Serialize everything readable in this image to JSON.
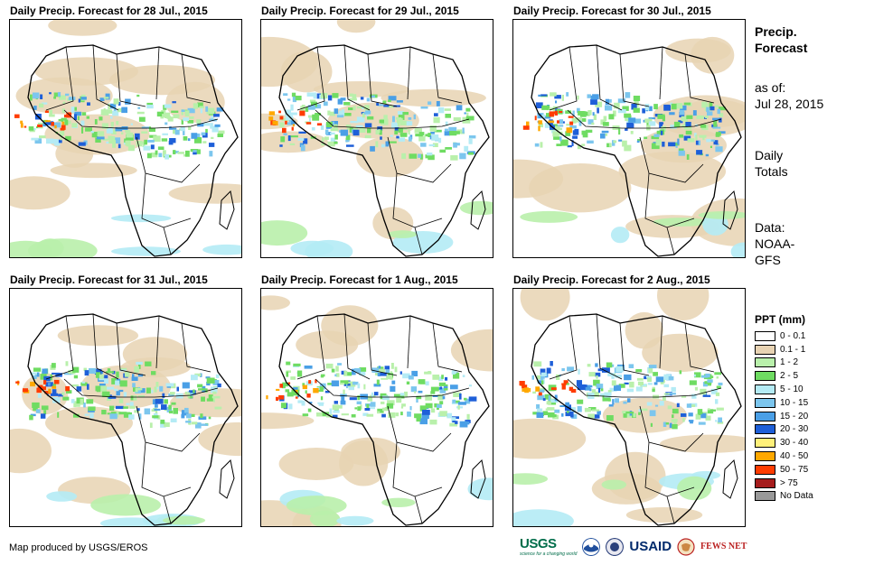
{
  "panels": [
    {
      "title": "Daily Precip. Forecast for 28 Jul., 2015"
    },
    {
      "title": "Daily Precip. Forecast for 29 Jul., 2015"
    },
    {
      "title": "Daily Precip. Forecast for 30 Jul., 2015"
    },
    {
      "title": "Daily Precip. Forecast for 31 Jul., 2015"
    },
    {
      "title": "Daily Precip. Forecast for 1 Aug., 2015"
    },
    {
      "title": "Daily Precip. Forecast for 2 Aug., 2015"
    }
  ],
  "side": {
    "title_line1": "Precip.",
    "title_line2": "Forecast",
    "asof_line1": "as of:",
    "asof_line2": "Jul 28, 2015",
    "totals_line1": "Daily",
    "totals_line2": "Totals",
    "data_line1": "Data:",
    "data_line2": "NOAA-",
    "data_line3": "GFS"
  },
  "legend": {
    "title": "PPT (mm)",
    "items": [
      {
        "label": "0 - 0.1",
        "color": "#ffffff"
      },
      {
        "label": "0.1 - 1",
        "color": "#e8d3b3"
      },
      {
        "label": "1 - 2",
        "color": "#b9f0ab"
      },
      {
        "label": "2 - 5",
        "color": "#6fdc62"
      },
      {
        "label": "5 - 10",
        "color": "#b4ebf5"
      },
      {
        "label": "10 - 15",
        "color": "#7cc6ee"
      },
      {
        "label": "15 - 20",
        "color": "#4a9fe6"
      },
      {
        "label": "20 - 30",
        "color": "#1e5fd8"
      },
      {
        "label": "30 - 40",
        "color": "#fff07a"
      },
      {
        "label": "40 - 50",
        "color": "#ffa800"
      },
      {
        "label": "50 - 75",
        "color": "#ff3c00"
      },
      {
        "label": "> 75",
        "color": "#a51c1c"
      },
      {
        "label": "No Data",
        "color": "#999999"
      }
    ]
  },
  "footer": {
    "text": "Map produced by USGS/EROS"
  },
  "logos": {
    "usgs": "USGS",
    "usgs_tagline": "science for a changing world",
    "usaid": "USAID",
    "fews": "FEWS NET"
  }
}
